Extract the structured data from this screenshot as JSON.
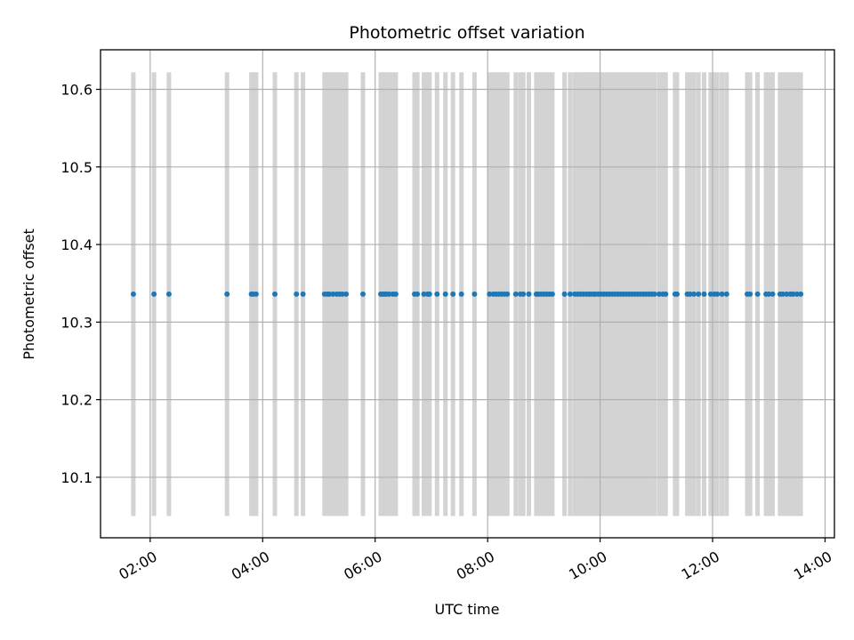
{
  "chart_data": {
    "type": "scatter",
    "title": "Photometric offset variation",
    "xlabel": "UTC time",
    "ylabel": "Photometric offset",
    "grid": true,
    "legend": "none",
    "colors": {
      "points": "#1f77b4",
      "bands": "#d3d3d3",
      "grid": "#b0b0b0",
      "axes": "#000000"
    },
    "xlim": [
      "01:07",
      "14:10"
    ],
    "ylim": [
      10.022,
      10.651
    ],
    "x_ticks": [
      "02:00",
      "04:00",
      "06:00",
      "08:00",
      "10:00",
      "12:00",
      "14:00"
    ],
    "y_ticks": [
      "10.1",
      "10.2",
      "10.3",
      "10.4",
      "10.5",
      "10.6"
    ],
    "band_ymin": 10.05,
    "band_ymax": 10.622,
    "series": [
      {
        "y_value": 10.336,
        "x": [
          "01:42",
          "02:04",
          "02:20",
          "03:22",
          "03:48",
          "03:50",
          "03:53",
          "04:13",
          "04:36",
          "04:43",
          "05:06",
          "05:09",
          "05:11",
          "05:15",
          "05:19",
          "05:22",
          "05:25",
          "05:29",
          "05:47",
          "06:06",
          "06:08",
          "06:10",
          "06:12",
          "06:15",
          "06:19",
          "06:22",
          "06:42",
          "06:45",
          "06:52",
          "06:56",
          "06:58",
          "07:06",
          "07:15",
          "07:23",
          "07:32",
          "07:46",
          "08:02",
          "08:06",
          "08:09",
          "08:12",
          "08:15",
          "08:18",
          "08:21",
          "08:30",
          "08:35",
          "08:38",
          "08:44",
          "08:52",
          "08:54",
          "08:57",
          "09:00",
          "09:03",
          "09:06",
          "09:09",
          "09:22",
          "09:28",
          "09:33",
          "09:36",
          "09:39",
          "09:42",
          "09:45",
          "09:48",
          "09:50",
          "09:53",
          "09:55",
          "09:58",
          "10:01",
          "10:04",
          "10:07",
          "10:10",
          "10:13",
          "10:16",
          "10:19",
          "10:22",
          "10:25",
          "10:28",
          "10:31",
          "10:34",
          "10:37",
          "10:40",
          "10:43",
          "10:46",
          "10:49",
          "10:52",
          "10:55",
          "10:58",
          "11:03",
          "11:07",
          "11:10",
          "11:20",
          "11:22",
          "11:33",
          "11:36",
          "11:40",
          "11:45",
          "11:51",
          "11:58",
          "12:02",
          "12:05",
          "12:10",
          "12:15",
          "12:37",
          "12:40",
          "12:48",
          "12:57",
          "13:00",
          "13:04",
          "13:12",
          "13:15",
          "13:19",
          "13:23",
          "13:26",
          "13:30",
          "13:34"
        ]
      }
    ]
  }
}
